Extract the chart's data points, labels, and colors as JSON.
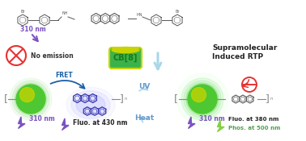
{
  "bg_color": "#ffffff",
  "nm_310_color": "#7b52c1",
  "no_emission_text": "No emission",
  "cb8_text": "CB[8]",
  "cb8_fg": "#3cb34a",
  "cb8_edge": "#c8d400",
  "rtp_title": "Supramolecular\nInduced RTP",
  "uv_text": "UV",
  "heat_text": "Heat",
  "fret_text": "FRET",
  "fluo430_text": "Fluo. at 430 nm",
  "fluo380_text": "Fluo. at 380 nm",
  "phos500_text": "Phos. at 500 nm",
  "nm310_text": "310 nm",
  "arrow_blue": "#a8d8ea",
  "green_sphere": "#4dc832",
  "yellow_green": "#c8d400",
  "fret_arrow_color": "#1a5fa8",
  "no_emit_circle_color": "#e63232",
  "blue_glow": "#8080ff",
  "green_glow": "#80ff80",
  "lightning_purple": "#7b52c1",
  "lightning_green": "#80d040",
  "mol_color": "#555555",
  "chain_color": "#888888"
}
